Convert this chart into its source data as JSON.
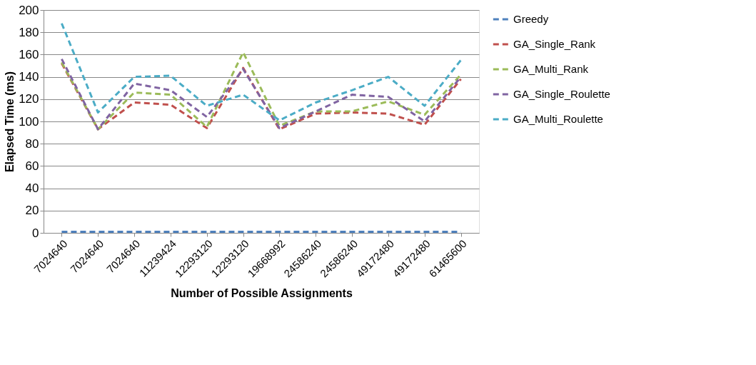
{
  "chart_data": {
    "type": "line",
    "xlabel": "Number of Possible Assignments",
    "ylabel": "Elapsed Time (ms)",
    "categories": [
      "7024640",
      "7024640",
      "7024640",
      "11239424",
      "12293120",
      "12293120",
      "19668992",
      "24586240",
      "24586240",
      "49172480",
      "49172480",
      "61465600"
    ],
    "series": [
      {
        "name": "Greedy",
        "color": "#4f81bd",
        "values": [
          1,
          1,
          1,
          1,
          1,
          1,
          1,
          1,
          1,
          1,
          1,
          1
        ]
      },
      {
        "name": "GA_Single_Rank",
        "color": "#c0504d",
        "values": [
          152,
          93,
          117,
          115,
          94,
          148,
          93,
          107,
          108,
          107,
          97,
          138
        ]
      },
      {
        "name": "GA_Multi_Rank",
        "color": "#9bbb59",
        "values": [
          153,
          93,
          126,
          124,
          95,
          162,
          96,
          109,
          109,
          118,
          106,
          142
        ]
      },
      {
        "name": "GA_Single_Roulette",
        "color": "#8064a2",
        "values": [
          156,
          93,
          134,
          128,
          104,
          147,
          94,
          109,
          124,
          122,
          100,
          140
        ]
      },
      {
        "name": "GA_Multi_Roulette",
        "color": "#4bacc6",
        "values": [
          188,
          108,
          140,
          141,
          114,
          124,
          101,
          117,
          128,
          140,
          114,
          155
        ]
      }
    ],
    "ylim": [
      0,
      200
    ],
    "yticks": [
      0,
      20,
      40,
      60,
      80,
      100,
      120,
      140,
      160,
      180,
      200
    ],
    "grid": "y",
    "legend": "right",
    "marker": "none",
    "line_style": "dashed"
  }
}
